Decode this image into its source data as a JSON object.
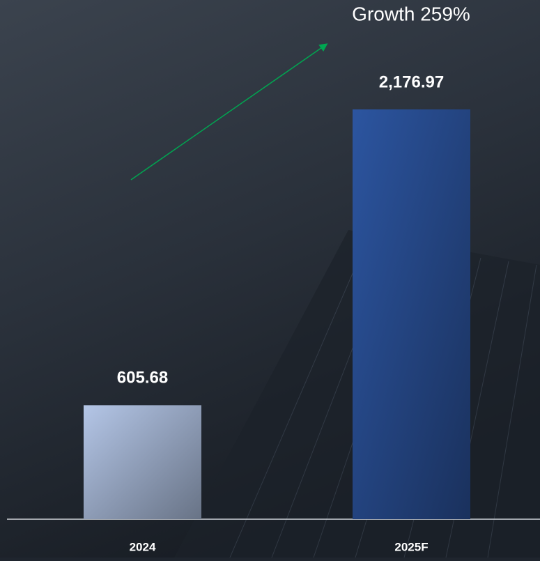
{
  "chart_data": {
    "type": "bar",
    "annotation": "Growth 259%",
    "categories": [
      "2024",
      "2025F"
    ],
    "values": [
      605.68,
      2176.97
    ],
    "value_labels": [
      "605.68",
      "2,176.97"
    ],
    "colors": [
      "#b4c6e7",
      "#2c55a0"
    ]
  }
}
